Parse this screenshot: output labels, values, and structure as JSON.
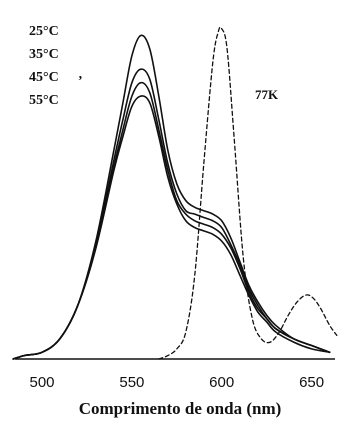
{
  "chart_data": {
    "type": "line",
    "title": "",
    "xlabel": "Comprimento  de onda (nm)",
    "ylabel": "",
    "xlim": [
      482,
      668
    ],
    "ylim": [
      0,
      1.0
    ],
    "x_ticks": [
      500,
      550,
      600,
      650
    ],
    "x_tick_labels": [
      "500",
      "550",
      "600",
      "650"
    ],
    "grid": false,
    "legend_placement": "top-left",
    "legend": [
      "25°C",
      "35°C",
      "45°C",
      "55°C"
    ],
    "legend_extra_mark": "‚",
    "annotations": [
      {
        "text": "77K",
        "x": 620,
        "y": 0.77
      }
    ],
    "colors": {
      "line": "#111111",
      "background": "#ffffff"
    },
    "series": [
      {
        "name": "25°C",
        "style": "solid",
        "x": [
          484,
          490,
          500,
          510,
          520,
          530,
          540,
          545,
          550,
          555,
          560,
          565,
          570,
          575,
          580,
          585,
          590,
          595,
          600,
          605,
          610,
          615,
          620,
          625,
          630,
          640,
          650,
          660
        ],
        "y": [
          0.0,
          0.01,
          0.02,
          0.06,
          0.16,
          0.35,
          0.62,
          0.76,
          0.9,
          0.96,
          0.92,
          0.78,
          0.62,
          0.52,
          0.47,
          0.45,
          0.44,
          0.43,
          0.41,
          0.36,
          0.29,
          0.22,
          0.17,
          0.13,
          0.1,
          0.06,
          0.04,
          0.02
        ]
      },
      {
        "name": "35°C",
        "style": "solid",
        "x": [
          484,
          490,
          500,
          510,
          520,
          530,
          540,
          545,
          550,
          555,
          560,
          565,
          570,
          575,
          580,
          585,
          590,
          595,
          600,
          605,
          610,
          615,
          620,
          625,
          630,
          640,
          650,
          660
        ],
        "y": [
          0.0,
          0.01,
          0.02,
          0.06,
          0.16,
          0.34,
          0.59,
          0.71,
          0.82,
          0.86,
          0.83,
          0.71,
          0.58,
          0.49,
          0.44,
          0.43,
          0.42,
          0.41,
          0.39,
          0.34,
          0.28,
          0.21,
          0.16,
          0.12,
          0.09,
          0.06,
          0.04,
          0.02
        ]
      },
      {
        "name": "45°C",
        "style": "solid",
        "x": [
          484,
          490,
          500,
          510,
          520,
          530,
          540,
          545,
          550,
          555,
          560,
          565,
          570,
          575,
          580,
          585,
          590,
          595,
          600,
          605,
          610,
          615,
          620,
          625,
          630,
          640,
          650,
          660
        ],
        "y": [
          0.0,
          0.01,
          0.02,
          0.06,
          0.16,
          0.33,
          0.57,
          0.68,
          0.78,
          0.82,
          0.79,
          0.68,
          0.56,
          0.47,
          0.43,
          0.41,
          0.4,
          0.39,
          0.37,
          0.33,
          0.27,
          0.2,
          0.15,
          0.12,
          0.09,
          0.06,
          0.04,
          0.02
        ]
      },
      {
        "name": "55°C",
        "style": "solid",
        "x": [
          484,
          490,
          500,
          510,
          520,
          530,
          540,
          545,
          550,
          555,
          560,
          565,
          570,
          575,
          580,
          585,
          590,
          595,
          600,
          605,
          610,
          615,
          620,
          625,
          630,
          640,
          650,
          660
        ],
        "y": [
          0.0,
          0.01,
          0.02,
          0.06,
          0.16,
          0.33,
          0.56,
          0.66,
          0.75,
          0.78,
          0.76,
          0.66,
          0.54,
          0.46,
          0.41,
          0.39,
          0.38,
          0.37,
          0.35,
          0.31,
          0.25,
          0.19,
          0.14,
          0.11,
          0.08,
          0.05,
          0.03,
          0.02
        ]
      },
      {
        "name": "77K",
        "style": "dashed",
        "x": [
          565,
          570,
          575,
          580,
          585,
          590,
          595,
          598,
          600,
          603,
          607,
          612,
          617,
          622,
          627,
          632,
          637,
          642,
          647,
          651,
          655,
          660,
          664
        ],
        "y": [
          0.0,
          0.01,
          0.03,
          0.08,
          0.25,
          0.58,
          0.88,
          0.97,
          0.98,
          0.92,
          0.65,
          0.3,
          0.12,
          0.06,
          0.05,
          0.08,
          0.13,
          0.17,
          0.19,
          0.18,
          0.15,
          0.1,
          0.07
        ]
      }
    ]
  }
}
